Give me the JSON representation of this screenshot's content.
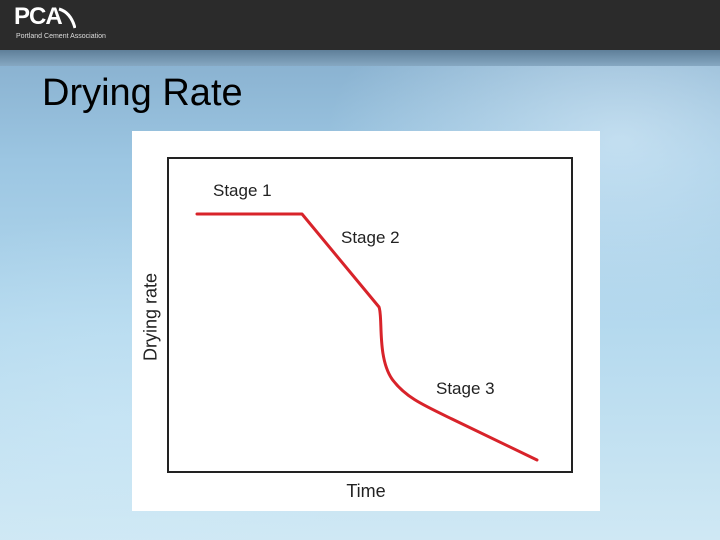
{
  "header": {
    "logo_text": "PCA",
    "logo_subtitle": "Portland Cement Association"
  },
  "slide": {
    "title": "Drying Rate"
  },
  "diagram": {
    "x_label": "Time",
    "y_label": "Drying rate",
    "stages": [
      "Stage 1",
      "Stage 2",
      "Stage 3"
    ],
    "curve_color": "#d8232a"
  }
}
